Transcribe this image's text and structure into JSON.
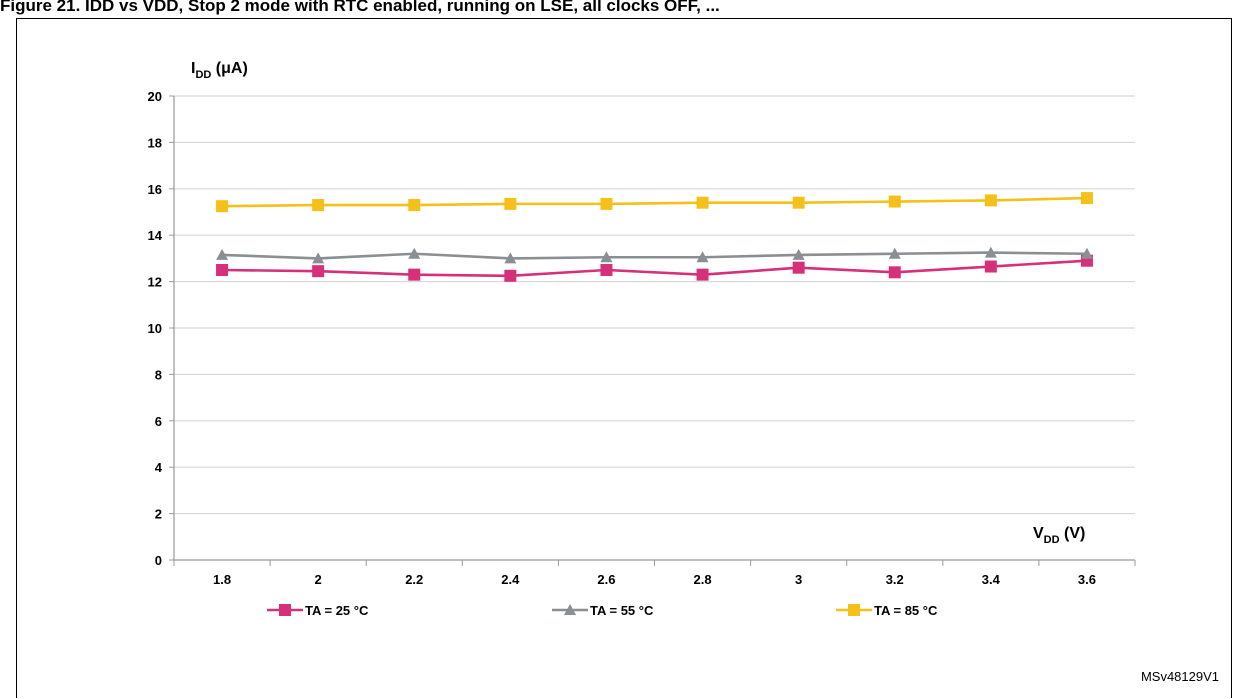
{
  "header": {
    "caption": "Figure 21. IDD vs VDD, Stop 2 mode with RTC enabled, running on LSE, all clocks OFF, ..."
  },
  "chart_data": {
    "type": "line",
    "title": "",
    "ylabel": "I",
    "ylabel_sub": "DD",
    "ylabel_unit": " (μA)",
    "xlabel": "V",
    "xlabel_sub": "DD",
    "xlabel_unit": " (V)",
    "ylim": [
      0,
      20
    ],
    "yticks": [
      "0",
      "2",
      "4",
      "6",
      "8",
      "10",
      "12",
      "14",
      "16",
      "18",
      "20"
    ],
    "categories": [
      "1.8",
      "2",
      "2.2",
      "2.4",
      "2.6",
      "2.8",
      "3",
      "3.2",
      "3.4",
      "3.6"
    ],
    "grid": true,
    "legend_position": "bottom",
    "series": [
      {
        "name": "TA = 25 °C",
        "color": "#d6307a",
        "marker": "square",
        "values": [
          12.5,
          12.45,
          12.3,
          12.25,
          12.5,
          12.3,
          12.6,
          12.4,
          12.65,
          12.9
        ]
      },
      {
        "name": "TA = 55 °C",
        "color": "#8a8f94",
        "marker": "triangle",
        "values": [
          13.15,
          13.0,
          13.2,
          13.0,
          13.05,
          13.05,
          13.15,
          13.2,
          13.25,
          13.2
        ]
      },
      {
        "name": "TA = 85 °C",
        "color": "#f5c01a",
        "marker": "square",
        "values": [
          15.25,
          15.3,
          15.3,
          15.35,
          15.35,
          15.4,
          15.4,
          15.45,
          15.5,
          15.6
        ]
      }
    ],
    "reference": "MSv48129V1"
  }
}
